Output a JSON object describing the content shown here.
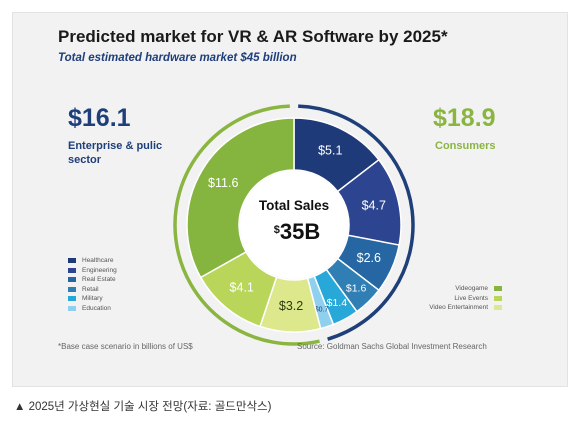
{
  "chart_data": {
    "type": "pie",
    "title": "Predicted market for VR & AR Software by 2025*",
    "subtitle": "Total estimated hardware market $45 billion",
    "center_label": "Total Sales",
    "center_value_symbol": "$",
    "center_value": "35B",
    "groups": [
      {
        "amount": "$16.1",
        "label": "Enterprise & pulic sector",
        "color": "#1f3f7a"
      },
      {
        "amount": "$18.9",
        "label": "Consumers",
        "color": "#8ab540"
      }
    ],
    "slices": [
      {
        "name": "Healthcare",
        "value": 5.1,
        "label": "$5.1",
        "color": "#1f3a78"
      },
      {
        "name": "Engineering",
        "value": 4.7,
        "label": "$4.7",
        "color": "#2d4590"
      },
      {
        "name": "Real Estate",
        "value": 2.6,
        "label": "$2.6",
        "color": "#2566a3"
      },
      {
        "name": "Retail",
        "value": 1.6,
        "label": "$1.6",
        "color": "#2f7fb5"
      },
      {
        "name": "Military",
        "value": 1.4,
        "label": "$1.4",
        "color": "#28a8d8"
      },
      {
        "name": "Education",
        "value": 0.7,
        "label": "$0.7",
        "color": "#8fd0ee"
      },
      {
        "name": "Video Entertainment",
        "value": 3.2,
        "label": "$3.2",
        "color": "#dde88c"
      },
      {
        "name": "Live Events",
        "value": 4.1,
        "label": "$4.1",
        "color": "#b9d65a"
      },
      {
        "name": "Videogame",
        "value": 11.6,
        "label": "$11.6",
        "color": "#86b53f"
      }
    ],
    "legend_left": [
      "Healthcare",
      "Engineering",
      "Real Estate",
      "Retail",
      "Military",
      "Education"
    ],
    "legend_right": [
      "Videogame",
      "Live Events",
      "Video Entertainment"
    ],
    "footnote": "*Base case scenario in billions of US$",
    "source": "Source: Goldman Sachs Global Investment Research"
  },
  "caption": "▲ 2025년 가상현실 기술 시장 전망(자료: 골드만삭스)"
}
